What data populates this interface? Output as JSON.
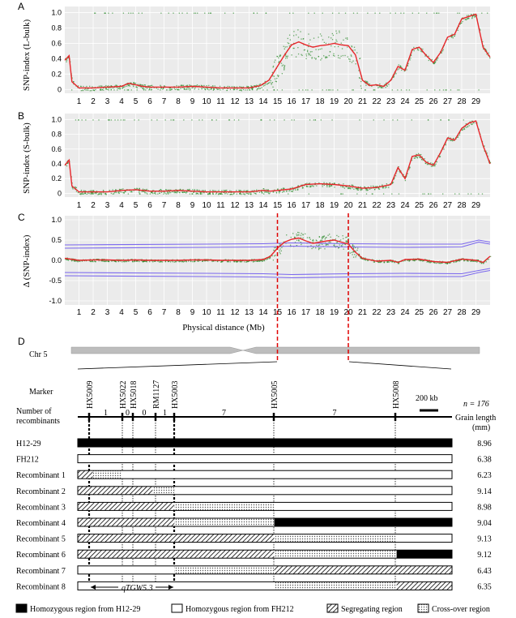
{
  "panels": [
    {
      "letter": "A",
      "ylabel": "SNP-index  (L-bulk)",
      "yticks": [
        "0",
        "0.2",
        "0.4",
        "0.6",
        "0.8",
        "1.0"
      ]
    },
    {
      "letter": "B",
      "ylabel": "SNP-index  (S-bulk)",
      "yticks": [
        "0",
        "0.2",
        "0.4",
        "0.6",
        "0.8",
        "1.0"
      ]
    },
    {
      "letter": "C",
      "ylabel": "Δ (SNP-index)",
      "yticks": [
        "-1.0",
        "-0.5",
        "0.0",
        "0.5",
        "1.0"
      ]
    }
  ],
  "xticks": [
    "1",
    "2",
    "3",
    "4",
    "5",
    "6",
    "7",
    "8",
    "9",
    "10",
    "11",
    "12",
    "13",
    "14",
    "15",
    "16",
    "17",
    "18",
    "19",
    "20",
    "21",
    "22",
    "23",
    "24",
    "25",
    "26",
    "27",
    "28",
    "29"
  ],
  "xlabel": "Physical distance (Mb)",
  "colors": {
    "background": "#ebebeb",
    "grid": "#ffffff",
    "points": "#2e8b2e",
    "line": "#e8262b",
    "ci": "#7b68ee",
    "dash": "#e00000",
    "chrom": "#bdbdbd"
  },
  "chart_data": [
    {
      "type": "scatter",
      "panel": "A",
      "xlabel": "",
      "ylabel": "SNP-index  (L-bulk)",
      "xlim": [
        0,
        30
      ],
      "ylim": [
        0,
        1.05
      ],
      "series": [
        {
          "values": [
            [
              0.0,
              0.38
            ],
            [
              0.3,
              0.44
            ],
            [
              0.5,
              0.1
            ],
            [
              1,
              0.02
            ],
            [
              2,
              0.02
            ],
            [
              3,
              0.03
            ],
            [
              4,
              0.04
            ],
            [
              4.5,
              0.08
            ],
            [
              5,
              0.06
            ],
            [
              5.5,
              0.04
            ],
            [
              6,
              0.03
            ],
            [
              7,
              0.03
            ],
            [
              8,
              0.03
            ],
            [
              9,
              0.04
            ],
            [
              10,
              0.03
            ],
            [
              11,
              0.02
            ],
            [
              12,
              0.02
            ],
            [
              13,
              0.02
            ],
            [
              13.8,
              0.05
            ],
            [
              14.4,
              0.12
            ],
            [
              15,
              0.3
            ],
            [
              15.5,
              0.45
            ],
            [
              16,
              0.58
            ],
            [
              16.5,
              0.62
            ],
            [
              17,
              0.58
            ],
            [
              17.5,
              0.55
            ],
            [
              18,
              0.57
            ],
            [
              18.5,
              0.58
            ],
            [
              19,
              0.6
            ],
            [
              19.5,
              0.58
            ],
            [
              20,
              0.57
            ],
            [
              20.5,
              0.45
            ],
            [
              21,
              0.12
            ],
            [
              21.5,
              0.05
            ],
            [
              22,
              0.06
            ],
            [
              22.5,
              0.04
            ],
            [
              23,
              0.12
            ],
            [
              23.5,
              0.3
            ],
            [
              24,
              0.25
            ],
            [
              24.5,
              0.52
            ],
            [
              25,
              0.55
            ],
            [
              25.5,
              0.44
            ],
            [
              26,
              0.35
            ],
            [
              26.5,
              0.48
            ],
            [
              27,
              0.68
            ],
            [
              27.5,
              0.72
            ],
            [
              28,
              0.92
            ],
            [
              28.5,
              0.95
            ],
            [
              29,
              0.98
            ],
            [
              29.5,
              0.55
            ],
            [
              30,
              0.42
            ]
          ]
        }
      ]
    },
    {
      "type": "scatter",
      "panel": "B",
      "xlabel": "",
      "ylabel": "SNP-index  (S-bulk)",
      "xlim": [
        0,
        30
      ],
      "ylim": [
        0,
        1.05
      ],
      "series": [
        {
          "values": [
            [
              0.0,
              0.38
            ],
            [
              0.3,
              0.45
            ],
            [
              0.5,
              0.1
            ],
            [
              1,
              0.02
            ],
            [
              2,
              0.02
            ],
            [
              3,
              0.02
            ],
            [
              4,
              0.04
            ],
            [
              5,
              0.05
            ],
            [
              6,
              0.03
            ],
            [
              7,
              0.03
            ],
            [
              8,
              0.04
            ],
            [
              9,
              0.03
            ],
            [
              10,
              0.02
            ],
            [
              11,
              0.02
            ],
            [
              12,
              0.02
            ],
            [
              13,
              0.02
            ],
            [
              14,
              0.04
            ],
            [
              14.5,
              0.03
            ],
            [
              15,
              0.04
            ],
            [
              16,
              0.06
            ],
            [
              17,
              0.12
            ],
            [
              18,
              0.13
            ],
            [
              19,
              0.12
            ],
            [
              20,
              0.1
            ],
            [
              21,
              0.07
            ],
            [
              22,
              0.08
            ],
            [
              23,
              0.12
            ],
            [
              23.5,
              0.35
            ],
            [
              24,
              0.2
            ],
            [
              24.5,
              0.5
            ],
            [
              25,
              0.52
            ],
            [
              25.5,
              0.42
            ],
            [
              26,
              0.38
            ],
            [
              26.5,
              0.55
            ],
            [
              27,
              0.75
            ],
            [
              27.5,
              0.72
            ],
            [
              28,
              0.88
            ],
            [
              28.5,
              0.95
            ],
            [
              29,
              0.98
            ],
            [
              29.5,
              0.65
            ],
            [
              30,
              0.4
            ]
          ]
        }
      ]
    },
    {
      "type": "scatter",
      "panel": "C",
      "xlabel": "Physical distance (Mb)",
      "ylabel": "Δ (SNP-index)",
      "xlim": [
        0,
        30
      ],
      "ylim": [
        -1.05,
        1.05
      ],
      "series": [
        {
          "values": [
            [
              0,
              0.05
            ],
            [
              1,
              0.0
            ],
            [
              2,
              0.01
            ],
            [
              3,
              0.01
            ],
            [
              4,
              0.0
            ],
            [
              5,
              0.01
            ],
            [
              6,
              0.0
            ],
            [
              7,
              0.0
            ],
            [
              8,
              0.0
            ],
            [
              9,
              0.01
            ],
            [
              10,
              0.01
            ],
            [
              11,
              0.0
            ],
            [
              12,
              0.0
            ],
            [
              13,
              0.0
            ],
            [
              14,
              0.02
            ],
            [
              14.5,
              0.1
            ],
            [
              15,
              0.3
            ],
            [
              15.5,
              0.45
            ],
            [
              16,
              0.52
            ],
            [
              16.5,
              0.55
            ],
            [
              17,
              0.48
            ],
            [
              17.5,
              0.42
            ],
            [
              18,
              0.45
            ],
            [
              18.5,
              0.48
            ],
            [
              19,
              0.5
            ],
            [
              19.5,
              0.45
            ],
            [
              20,
              0.4
            ],
            [
              20.5,
              0.2
            ],
            [
              21,
              0.05
            ],
            [
              22,
              -0.02
            ],
            [
              23,
              0.0
            ],
            [
              23.5,
              -0.05
            ],
            [
              24,
              0.02
            ],
            [
              25,
              0.03
            ],
            [
              26,
              -0.03
            ],
            [
              27,
              -0.05
            ],
            [
              28,
              0.03
            ],
            [
              29,
              0.0
            ],
            [
              29.5,
              -0.05
            ],
            [
              30,
              0.1
            ]
          ]
        },
        {
          "values": [
            [
              0,
              0.3
            ],
            [
              10,
              0.32
            ],
            [
              14,
              0.33
            ],
            [
              16,
              0.35
            ],
            [
              20,
              0.33
            ],
            [
              24,
              0.32
            ],
            [
              28,
              0.33
            ],
            [
              29.2,
              0.45
            ],
            [
              30,
              0.4
            ]
          ]
        },
        {
          "values": [
            [
              0,
              0.38
            ],
            [
              10,
              0.4
            ],
            [
              14,
              0.41
            ],
            [
              16,
              0.43
            ],
            [
              20,
              0.41
            ],
            [
              24,
              0.4
            ],
            [
              28,
              0.4
            ],
            [
              29.2,
              0.5
            ],
            [
              30,
              0.45
            ]
          ]
        },
        {
          "values": [
            [
              0,
              -0.3
            ],
            [
              10,
              -0.32
            ],
            [
              14,
              -0.33
            ],
            [
              16,
              -0.35
            ],
            [
              20,
              -0.33
            ],
            [
              24,
              -0.32
            ],
            [
              28,
              -0.33
            ],
            [
              29.2,
              -0.25
            ],
            [
              30,
              -0.2
            ]
          ]
        },
        {
          "values": [
            [
              0,
              -0.38
            ],
            [
              10,
              -0.4
            ],
            [
              14,
              -0.41
            ],
            [
              16,
              -0.43
            ],
            [
              20,
              -0.41
            ],
            [
              24,
              -0.4
            ],
            [
              28,
              -0.4
            ],
            [
              29.2,
              -0.3
            ],
            [
              30,
              -0.25
            ]
          ]
        }
      ],
      "vlines": [
        15,
        20
      ]
    },
    {
      "type": "table",
      "panel": "D",
      "title": "",
      "chromosome": "Chr 5",
      "marker_title": "Marker",
      "recomb_title": [
        "Number of",
        "recombinants"
      ],
      "n_label": "n = 176",
      "grain_title": [
        "Grain length",
        "(mm)"
      ],
      "scale_label": "200 kb",
      "qtl_label": "qTGW5.3",
      "markers": [
        "HX5009",
        "HX5022",
        "HX5018",
        "RM1127",
        "HX5003",
        "HX5005",
        "HX5008"
      ],
      "recombinant_counts": [
        "1",
        "0",
        "0",
        "1",
        "7",
        "7"
      ],
      "rows": [
        {
          "label": "H12-29",
          "grain": "8.96",
          "segments": [
            [
              "H",
              0,
              1
            ]
          ]
        },
        {
          "label": "FH212",
          "grain": "6.38",
          "segments": [
            [
              "F",
              0,
              1
            ]
          ]
        },
        {
          "label": "Recombinant 1",
          "grain": "6.23",
          "segments": [
            [
              "S",
              0,
              0.04
            ],
            [
              "X",
              0.04,
              0.118
            ],
            [
              "F",
              0.118,
              1
            ]
          ]
        },
        {
          "label": "Recombinant 2",
          "grain": "9.14",
          "segments": [
            [
              "S",
              0,
              0.2
            ],
            [
              "X",
              0.2,
              0.258
            ],
            [
              "F",
              0.258,
              1
            ]
          ]
        },
        {
          "label": "Recombinant 3",
          "grain": "8.98",
          "segments": [
            [
              "S",
              0,
              0.258
            ],
            [
              "X",
              0.258,
              0.525
            ],
            [
              "F",
              0.525,
              1
            ]
          ]
        },
        {
          "label": "Recombinant 4",
          "grain": "9.04",
          "segments": [
            [
              "S",
              0,
              0.258
            ],
            [
              "X",
              0.258,
              0.525
            ],
            [
              "H",
              0.525,
              1
            ]
          ]
        },
        {
          "label": "Recombinant 5",
          "grain": "9.13",
          "segments": [
            [
              "S",
              0,
              0.525
            ],
            [
              "X",
              0.525,
              0.852
            ],
            [
              "F",
              0.852,
              1
            ]
          ]
        },
        {
          "label": "Recombinant 6",
          "grain": "9.12",
          "segments": [
            [
              "S",
              0,
              0.525
            ],
            [
              "X",
              0.525,
              0.852
            ],
            [
              "H",
              0.852,
              1
            ]
          ]
        },
        {
          "label": "Recombinant 7",
          "grain": "6.43",
          "segments": [
            [
              "F",
              0,
              0.258
            ],
            [
              "X",
              0.258,
              0.525
            ],
            [
              "S",
              0.525,
              1
            ]
          ]
        },
        {
          "label": "Recombinant 8",
          "grain": "6.35",
          "segments": [
            [
              "F",
              0,
              0.525
            ],
            [
              "X",
              0.525,
              0.852
            ],
            [
              "S",
              0.852,
              1
            ]
          ]
        }
      ],
      "legend": [
        {
          "key": "H",
          "label": "Homozygous region from H12-29"
        },
        {
          "key": "F",
          "label": "Homozygous region from FH212"
        },
        {
          "key": "S",
          "label": "Segregating region"
        },
        {
          "key": "X",
          "label": "Cross-over region"
        }
      ]
    }
  ]
}
